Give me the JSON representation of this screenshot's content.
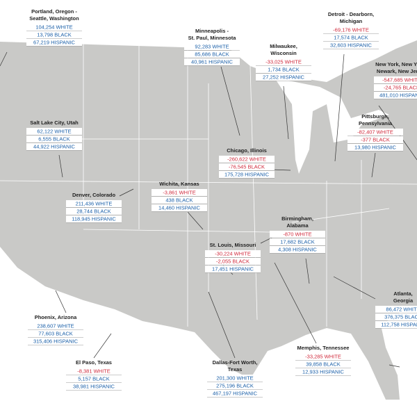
{
  "cities": [
    {
      "name": [
        "Portland, Oregon -",
        "Seattle, Washington"
      ],
      "rows": [
        "104,254 WHITE",
        "13,798 BLACK",
        "67,219 HISPANIC"
      ]
    },
    {
      "name": [
        "Minneapolis -",
        "St. Paul, Minnesota"
      ],
      "rows": [
        "92,283 WHITE",
        "85,686 BLACK",
        "40,961 HISPANIC"
      ]
    },
    {
      "name": [
        "Milwaukee,",
        "Wisconsin"
      ],
      "rows": [
        "-33,025 WHITE",
        "1,734 BLACK",
        "27,252 HISPANIC"
      ]
    },
    {
      "name": [
        "Detroit - Dearborn,",
        "Michigan"
      ],
      "rows": [
        "-69,176 WHITE",
        "17,574 BLACK",
        "32,603 HISPANIC"
      ]
    },
    {
      "name": [
        "New York, New York -",
        "Newark, New Jersey"
      ],
      "rows": [
        "-547,685 WHITE",
        "-24,765 BLACK",
        "481,010 HISPANIC"
      ]
    },
    {
      "name": [
        "Salt Lake City, Utah"
      ],
      "rows": [
        "62,122 WHITE",
        "6,555 BLACK",
        "44,922 HISPANIC"
      ]
    },
    {
      "name": [
        "Chicago, Illinois"
      ],
      "rows": [
        "-260,622 WHITE",
        "-76,545 BLACK",
        "175,728 HISPANIC"
      ]
    },
    {
      "name": [
        "Pittsburgh,",
        "Pennsylvania"
      ],
      "rows": [
        "-82,407 WHITE",
        "-377 BLACK",
        "13,980 HISPANIC"
      ]
    },
    {
      "name": [
        "Denver, Colorado"
      ],
      "rows": [
        "211,436 WHITE",
        "28,744 BLACK",
        "118,945 HISPANIC"
      ]
    },
    {
      "name": [
        "Wichita, Kansas"
      ],
      "rows": [
        "-3,861 WHITE",
        "438 BLACK",
        "14,460 HISPANIC"
      ]
    },
    {
      "name": [
        "Birmingham,",
        "Alabama"
      ],
      "rows": [
        "-870 WHITE",
        "17,682 BLACK",
        "4,308 HISPANIC"
      ]
    },
    {
      "name": [
        "St. Louis, Missouri"
      ],
      "rows": [
        "-30,224 WHITE",
        "-2,055 BLACK",
        "17,451 HISPANIC"
      ]
    },
    {
      "name": [
        "Atlanta,",
        "Georgia"
      ],
      "rows": [
        "86,472 WHITE",
        "376,375 BLACK",
        "112,758 HISPANIC"
      ]
    },
    {
      "name": [
        "Phoenix, Arizona"
      ],
      "rows": [
        "238,607 WHITE",
        "77,603 BLACK",
        "315,406 HISPANIC"
      ]
    },
    {
      "name": [
        "Memphis, Tennessee"
      ],
      "rows": [
        "-33,285 WHITE",
        "39,858 BLACK",
        "12,933 HISPANIC"
      ]
    },
    {
      "name": [
        "El Paso, Texas"
      ],
      "rows": [
        "-8,381 WHITE",
        "5,157 BLACK",
        "38,981 HISPANIC"
      ]
    },
    {
      "name": [
        "Dallas-Fort Worth,",
        "Texas"
      ],
      "rows": [
        "201,300 WHITE",
        "275,196 BLACK",
        "467,197 HISPANIC"
      ]
    }
  ]
}
